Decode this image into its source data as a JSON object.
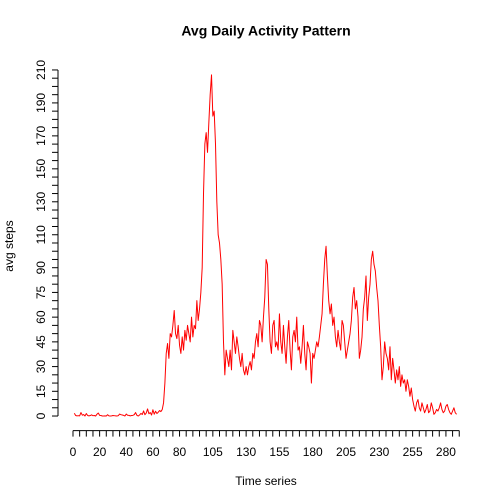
{
  "chart_data": {
    "type": "line",
    "title": "Avg Daily Activity Pattern",
    "x_label": "Time series",
    "y_label": "avg steps",
    "x": [
      1,
      2,
      3,
      4,
      5,
      6,
      7,
      8,
      9,
      10,
      11,
      12,
      13,
      14,
      15,
      16,
      17,
      18,
      19,
      20,
      21,
      22,
      23,
      24,
      25,
      26,
      27,
      28,
      29,
      30,
      31,
      32,
      33,
      34,
      35,
      36,
      37,
      38,
      39,
      40,
      41,
      42,
      43,
      44,
      45,
      46,
      47,
      48,
      49,
      50,
      51,
      52,
      53,
      54,
      55,
      56,
      57,
      58,
      59,
      60,
      61,
      62,
      63,
      64,
      65,
      66,
      67,
      68,
      69,
      70,
      71,
      72,
      73,
      74,
      75,
      76,
      77,
      78,
      79,
      80,
      81,
      82,
      83,
      84,
      85,
      86,
      87,
      88,
      89,
      90,
      91,
      92,
      93,
      94,
      95,
      96,
      97,
      98,
      99,
      100,
      101,
      102,
      103,
      104,
      105,
      106,
      107,
      108,
      109,
      110,
      111,
      112,
      113,
      114,
      115,
      116,
      117,
      118,
      119,
      120,
      121,
      122,
      123,
      124,
      125,
      126,
      127,
      128,
      129,
      130,
      131,
      132,
      133,
      134,
      135,
      136,
      137,
      138,
      139,
      140,
      141,
      142,
      143,
      144,
      145,
      146,
      147,
      148,
      149,
      150,
      151,
      152,
      153,
      154,
      155,
      156,
      157,
      158,
      159,
      160,
      161,
      162,
      163,
      164,
      165,
      166,
      167,
      168,
      169,
      170,
      171,
      172,
      173,
      174,
      175,
      176,
      177,
      178,
      179,
      180,
      181,
      182,
      183,
      184,
      185,
      186,
      187,
      188,
      189,
      190,
      191,
      192,
      193,
      194,
      195,
      196,
      197,
      198,
      199,
      200,
      201,
      202,
      203,
      204,
      205,
      206,
      207,
      208,
      209,
      210,
      211,
      212,
      213,
      214,
      215,
      216,
      217,
      218,
      219,
      220,
      221,
      222,
      223,
      224,
      225,
      226,
      227,
      228,
      229,
      230,
      231,
      232,
      233,
      234,
      235,
      236,
      237,
      238,
      239,
      240,
      241,
      242,
      243,
      244,
      245,
      246,
      247,
      248,
      249,
      250,
      251,
      252,
      253,
      254,
      255,
      256,
      257,
      258,
      259,
      260,
      261,
      262,
      263,
      264,
      265,
      266,
      267,
      268,
      269,
      270,
      271,
      272,
      273,
      274,
      275,
      276,
      277,
      278,
      279,
      280,
      281,
      282,
      283,
      284,
      285,
      286,
      287,
      288
    ],
    "series": [
      {
        "color": "#ff0000",
        "values": [
          1.7,
          0.3,
          0.1,
          0.2,
          0.1,
          2.1,
          0.5,
          0.9,
          0,
          1.5,
          0.3,
          0.1,
          0.3,
          0.7,
          0.2,
          0.3,
          0,
          1.1,
          1.8,
          0.4,
          0.3,
          0,
          0,
          0.1,
          0,
          0.8,
          0.1,
          0,
          0.1,
          0.3,
          0.2,
          0.1,
          0,
          0.2,
          1.2,
          0.8,
          0.6,
          0.4,
          0,
          1.2,
          0.5,
          0.4,
          0.1,
          0.3,
          0.4,
          0.8,
          2.1,
          0.4,
          0,
          0.6,
          1.6,
          0.9,
          3.1,
          0.8,
          1.8,
          4.3,
          1.4,
          2.1,
          0.6,
          3.8,
          1.1,
          2.9,
          1.5,
          2.3,
          3.3,
          2.7,
          3.9,
          8,
          20,
          38,
          44,
          35,
          50,
          48,
          55,
          64,
          50,
          47,
          55,
          43,
          38,
          48,
          40,
          52,
          46,
          55,
          50,
          45,
          60,
          48,
          55,
          53,
          70,
          58,
          65,
          75,
          90,
          135,
          165,
          172,
          160,
          178,
          195,
          207,
          182,
          185,
          165,
          130,
          110,
          105,
          95,
          80,
          45,
          25,
          40,
          35,
          30,
          40,
          28,
          52,
          45,
          38,
          48,
          42,
          35,
          30,
          38,
          28,
          25,
          30,
          25,
          30,
          33,
          28,
          38,
          35,
          45,
          50,
          42,
          58,
          55,
          45,
          60,
          72,
          95,
          92,
          65,
          45,
          38,
          55,
          58,
          42,
          45,
          40,
          62,
          45,
          38,
          55,
          42,
          32,
          48,
          58,
          40,
          28,
          48,
          52,
          45,
          60,
          40,
          42,
          32,
          42,
          55,
          38,
          28,
          45,
          42,
          38,
          20,
          38,
          35,
          40,
          45,
          42,
          48,
          55,
          62,
          80,
          95,
          103,
          85,
          70,
          62,
          68,
          55,
          60,
          48,
          42,
          52,
          45,
          40,
          58,
          55,
          45,
          35,
          40,
          45,
          50,
          58,
          72,
          78,
          65,
          70,
          60,
          35,
          40,
          48,
          65,
          72,
          85,
          58,
          72,
          80,
          95,
          100,
          92,
          88,
          78,
          70,
          55,
          42,
          22,
          30,
          45,
          38,
          35,
          28,
          42,
          22,
          35,
          28,
          20,
          28,
          22,
          30,
          18,
          25,
          20,
          22,
          15,
          22,
          18,
          12,
          17,
          10,
          6,
          3,
          8,
          10,
          5,
          3,
          8,
          5,
          2,
          4,
          7,
          2,
          3,
          8,
          5,
          1,
          2,
          4,
          3,
          5,
          8,
          4,
          2,
          3,
          6,
          7,
          4,
          2,
          1,
          3,
          5,
          2,
          1
        ]
      }
    ],
    "xlim": [
      -10.5,
      299.5
    ],
    "ylim": [
      -8.24,
      214.4
    ],
    "xticks": [
      0,
      20,
      40,
      60,
      80,
      105,
      130,
      155,
      180,
      205,
      230,
      255,
      280
    ],
    "xminorticks": [
      5,
      10,
      15,
      25,
      30,
      35,
      45,
      50,
      55,
      65,
      70,
      75,
      85,
      90,
      95,
      100,
      110,
      115,
      120,
      125,
      135,
      140,
      145,
      150,
      160,
      165,
      170,
      175,
      185,
      190,
      195,
      200,
      210,
      215,
      220,
      225,
      235,
      240,
      245,
      250,
      260,
      265,
      270,
      275,
      285,
      290
    ],
    "yticks": [
      0,
      15,
      30,
      45,
      60,
      75,
      90,
      110,
      130,
      150,
      170,
      190,
      210
    ],
    "yminorticks": [
      5,
      10,
      20,
      25,
      35,
      40,
      50,
      55,
      65,
      70,
      80,
      85,
      95,
      100,
      105,
      115,
      120,
      125,
      135,
      140,
      145,
      155,
      160,
      165,
      175,
      180,
      185,
      195,
      200,
      205
    ]
  }
}
